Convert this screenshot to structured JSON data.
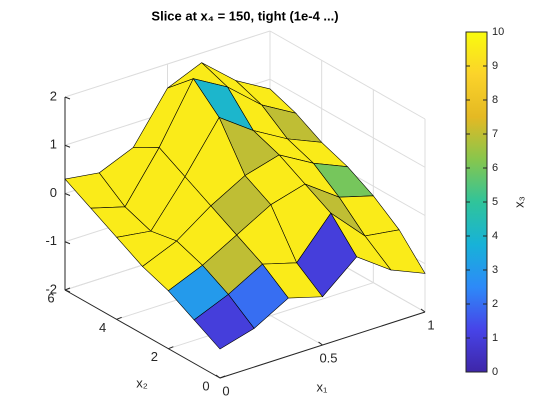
{
  "chart_data": {
    "type": "surface",
    "title": "Slice  at  x₄  =  150,  tight  (1e-4  ...)",
    "xlabel": "x₁",
    "ylabel": "x₂",
    "colorbar_label": "x₃",
    "x": [
      0,
      0.1667,
      0.3333,
      0.5,
      0.6667,
      0.8333,
      1
    ],
    "y": [
      0,
      1,
      2,
      3,
      4,
      5,
      6
    ],
    "z": [
      [
        -1.4,
        -1.2,
        -0.8,
        -1.0,
        -0.4,
        -0.9,
        -1.2
      ],
      [
        -1.1,
        -0.8,
        -0.4,
        -0.6,
        0.2,
        -0.5,
        -0.6
      ],
      [
        -0.8,
        -0.5,
        -0.1,
        0.3,
        0.5,
        0.0,
        -0.2
      ],
      [
        -0.6,
        -0.3,
        0.2,
        0.6,
        0.8,
        0.4,
        0.1
      ],
      [
        -0.3,
        -0.4,
        0.5,
        1.5,
        1.0,
        0.6,
        0.3
      ],
      [
        0.0,
        -0.2,
        0.8,
        2.0,
        1.6,
        1.0,
        0.6
      ],
      [
        0.3,
        0.2,
        0.5,
        1.5,
        1.8,
        1.2,
        0.8
      ]
    ],
    "color_values": [
      [
        1,
        2,
        9.5,
        1,
        9.5,
        9.5,
        3
      ],
      [
        3,
        7,
        9.5,
        9.5,
        7,
        9.5,
        9.5
      ],
      [
        9.5,
        9.5,
        7,
        9.5,
        9.5,
        6,
        9.5
      ],
      [
        9.5,
        9.5,
        9.5,
        7,
        9.5,
        9.5,
        9.5
      ],
      [
        9.5,
        9.5,
        9.5,
        4,
        9.5,
        7,
        9.5
      ],
      [
        9.5,
        9.5,
        9.5,
        9.5,
        9.5,
        9.5,
        9.5
      ],
      [
        9.5,
        9.5,
        1,
        9.5,
        9.5,
        9.5,
        9.5
      ]
    ],
    "xlim": [
      0,
      1
    ],
    "xticks": [
      0,
      0.5,
      1
    ],
    "ylim": [
      0,
      6
    ],
    "yticks": [
      0,
      2,
      4,
      6
    ],
    "zlim": [
      -2,
      2
    ],
    "zticks": [
      -2,
      -1,
      0,
      1,
      2
    ],
    "clim": [
      0,
      10
    ],
    "cticks": [
      0,
      1,
      2,
      3,
      4,
      5,
      6,
      7,
      8,
      9,
      10
    ],
    "colormap": [
      "#3e26a8",
      "#4744e8",
      "#2d8af8",
      "#17b2d8",
      "#30c49a",
      "#87c64d",
      "#e4b923",
      "#fbd32a",
      "#f9fb0e"
    ],
    "edge_color": "#000000",
    "grid": true
  }
}
